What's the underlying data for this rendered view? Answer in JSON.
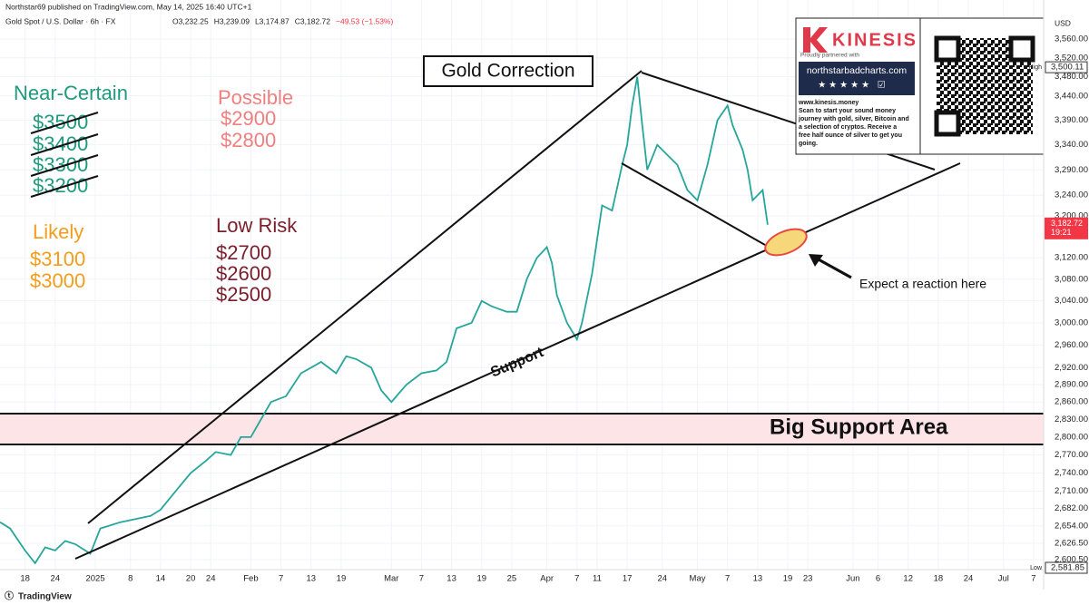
{
  "chart_data": {
    "type": "line",
    "publisher": "Northstar69 published on TradingView.com, May 14, 2025 16:40 UTC+1",
    "symbol": "Gold Spot / U.S. Dollar · 6h · FX",
    "ohlc": [
      "O3,232.25",
      "H3,239.09",
      "L3,174.87",
      "C3,182.72",
      "−49.53 (−1.53%)"
    ],
    "currency": "USD",
    "footer": "TradingView",
    "log_scale": true,
    "color": "#26a69a",
    "x": [
      -5,
      -3,
      0,
      2,
      4,
      6,
      8,
      10,
      13,
      15,
      19,
      22,
      25,
      27,
      30,
      33,
      36,
      38,
      41,
      43,
      45,
      47,
      49,
      52,
      55,
      57,
      59,
      62,
      64,
      66,
      69,
      71,
      73,
      76,
      79,
      82,
      84,
      86,
      89,
      91,
      93,
      96,
      98,
      100,
      102,
      104,
      105,
      106,
      108,
      110,
      111,
      113,
      115,
      117,
      119,
      120,
      121,
      122,
      123,
      124,
      126,
      128,
      130,
      132,
      134,
      136,
      138,
      140,
      141,
      143,
      144,
      145,
      147,
      148
    ],
    "values": [
      2660,
      2650,
      2615,
      2595,
      2620,
      2615,
      2630,
      2625,
      2610,
      2650,
      2660,
      2665,
      2670,
      2680,
      2710,
      2740,
      2760,
      2775,
      2770,
      2800,
      2800,
      2830,
      2860,
      2870,
      2910,
      2920,
      2930,
      2910,
      2940,
      2935,
      2920,
      2880,
      2860,
      2890,
      2910,
      2915,
      2930,
      2990,
      3000,
      3040,
      3030,
      3020,
      3020,
      3080,
      3120,
      3140,
      3110,
      3050,
      3000,
      2970,
      3000,
      3090,
      3220,
      3210,
      3300,
      3340,
      3420,
      3480,
      3380,
      3290,
      3340,
      3320,
      3300,
      3250,
      3230,
      3300,
      3390,
      3420,
      3380,
      3330,
      3290,
      3230,
      3250,
      3182.72
    ],
    "xlim": [
      -5,
      203
    ],
    "xticks": [
      {
        "value": 0,
        "label": "18"
      },
      {
        "value": 6,
        "label": "24"
      },
      {
        "value": 14,
        "label": "2025"
      },
      {
        "value": 21,
        "label": "8"
      },
      {
        "value": 27,
        "label": "14"
      },
      {
        "value": 33,
        "label": "20"
      },
      {
        "value": 37,
        "label": "24"
      },
      {
        "value": 45,
        "label": "Feb"
      },
      {
        "value": 51,
        "label": "7"
      },
      {
        "value": 57,
        "label": "13"
      },
      {
        "value": 63,
        "label": "19"
      },
      {
        "value": 73,
        "label": "Mar"
      },
      {
        "value": 79,
        "label": "7"
      },
      {
        "value": 85,
        "label": "13"
      },
      {
        "value": 91,
        "label": "19"
      },
      {
        "value": 97,
        "label": "25"
      },
      {
        "value": 104,
        "label": "Apr"
      },
      {
        "value": 110,
        "label": "7"
      },
      {
        "value": 114,
        "label": "11"
      },
      {
        "value": 120,
        "label": "17"
      },
      {
        "value": 127,
        "label": "24"
      },
      {
        "value": 134,
        "label": "May"
      },
      {
        "value": 140,
        "label": "7"
      },
      {
        "value": 146,
        "label": "13"
      },
      {
        "value": 152,
        "label": "19"
      },
      {
        "value": 156,
        "label": "23"
      },
      {
        "value": 165,
        "label": "Jun"
      },
      {
        "value": 170,
        "label": "6"
      },
      {
        "value": 176,
        "label": "12"
      },
      {
        "value": 182,
        "label": "18"
      },
      {
        "value": 188,
        "label": "24"
      },
      {
        "value": 195,
        "label": "Jul"
      },
      {
        "value": 201,
        "label": "7"
      }
    ],
    "ylim": [
      2568,
      3645
    ],
    "yticks": [
      {
        "value": 3560,
        "label": "3,560.00"
      },
      {
        "value": 3520,
        "label": "3,520.00"
      },
      {
        "value": 3480,
        "label": "3,480.00"
      },
      {
        "value": 3440,
        "label": "3,440.00"
      },
      {
        "value": 3390,
        "label": "3,390.00"
      },
      {
        "value": 3340,
        "label": "3,340.00"
      },
      {
        "value": 3290,
        "label": "3,290.00"
      },
      {
        "value": 3240,
        "label": "3,240.00"
      },
      {
        "value": 3200,
        "label": "3,200.00"
      },
      {
        "value": 3120,
        "label": "3,120.00"
      },
      {
        "value": 3080,
        "label": "3,080.00"
      },
      {
        "value": 3040,
        "label": "3,040.00"
      },
      {
        "value": 3000,
        "label": "3,000.00"
      },
      {
        "value": 2960,
        "label": "2,960.00"
      },
      {
        "value": 2920,
        "label": "2,920.00"
      },
      {
        "value": 2890,
        "label": "2,890.00"
      },
      {
        "value": 2860,
        "label": "2,860.00"
      },
      {
        "value": 2830,
        "label": "2,830.00"
      },
      {
        "value": 2800,
        "label": "2,800.00"
      },
      {
        "value": 2770,
        "label": "2,770.00"
      },
      {
        "value": 2740,
        "label": "2,740.00"
      },
      {
        "value": 2710,
        "label": "2,710.00"
      },
      {
        "value": 2682,
        "label": "2,682.00"
      },
      {
        "value": 2654,
        "label": "2,654.00"
      },
      {
        "value": 2626.5,
        "label": "2,626.50"
      },
      {
        "value": 2600.5,
        "label": "2,600.50"
      }
    ],
    "price_labels": {
      "high": {
        "tag": "High",
        "value": 3500.11,
        "label": "3,500.11"
      },
      "last": {
        "value": 3182.72,
        "label": "3,182.72",
        "time": "19:21"
      },
      "low": {
        "tag": "Low",
        "value": 2581.85,
        "label": "2,581.85"
      }
    },
    "annotations": {
      "title": "Gold Correction",
      "near_certain": {
        "label": "Near-Certain",
        "levels": [
          "$3500",
          "$3400",
          "$3300",
          "$3200"
        ]
      },
      "possible": {
        "label": "Possible",
        "levels": [
          "$2900",
          "$2800"
        ]
      },
      "likely": {
        "label": "Likely",
        "levels": [
          "$3100",
          "$3000"
        ]
      },
      "low_risk": {
        "label": "Low Risk",
        "levels": [
          "$2700",
          "$2600",
          "$2500"
        ]
      },
      "support": "Support",
      "support_area": "Big Support Area",
      "reaction": "Expect a reaction here"
    },
    "ad": {
      "brand": "KINESIS",
      "tagline": "Proudly partnered with",
      "site": "northstarbadcharts.com",
      "url": "www.kinesis.money",
      "lines": [
        "Scan to start your sound money",
        "journey with gold, silver, Bitcoin and",
        "a selection of cryptos. Receive a",
        "free half ounce of silver to get you",
        "going."
      ]
    }
  }
}
